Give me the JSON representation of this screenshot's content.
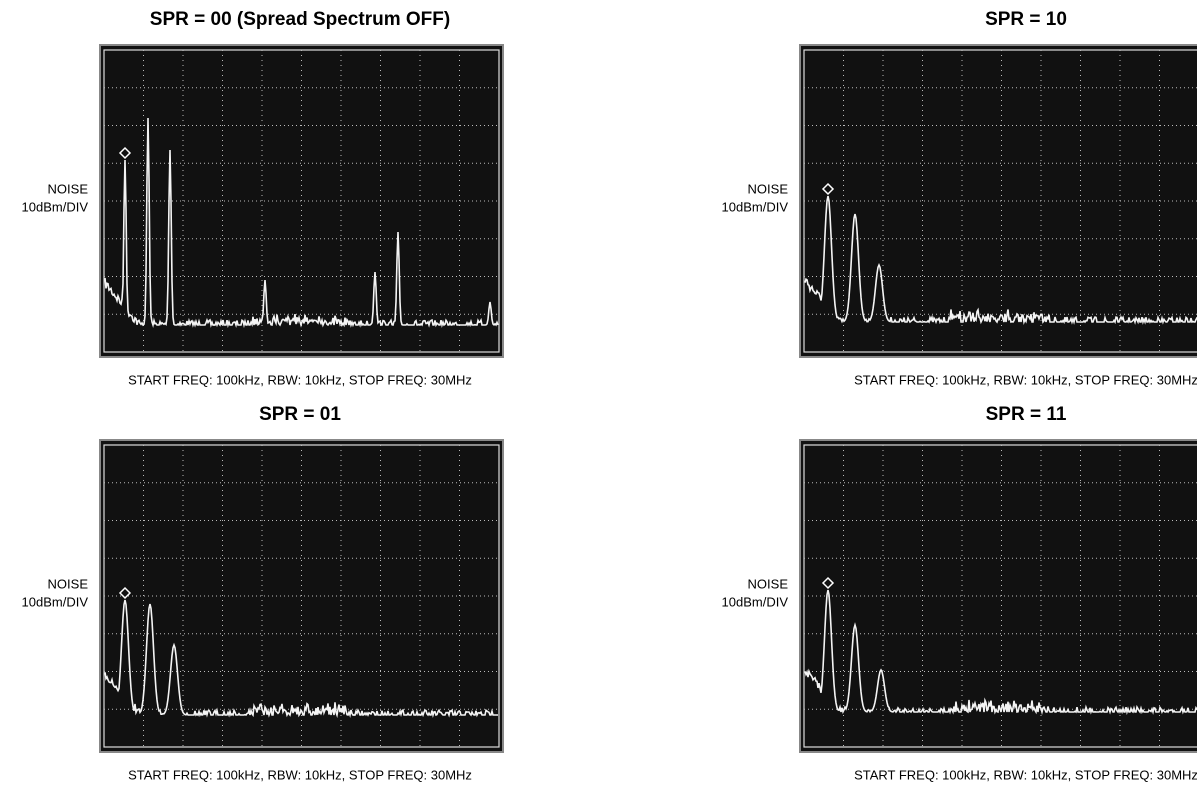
{
  "panels": [
    {
      "title": "SPR = 00 (Spread Spectrum OFF)",
      "y_label": [
        "NOISE",
        "10dBm/DIV"
      ],
      "caption": "START FREQ: 100kHz, RBW: 10kHz, STOP FREQ: 30MHz"
    },
    {
      "title": "SPR = 10",
      "y_label": [
        "NOISE",
        "10dBm/DIV"
      ],
      "caption": "START FREQ: 100kHz, RBW: 10kHz, STOP FREQ: 30MHz"
    },
    {
      "title": "SPR = 01",
      "y_label": [
        "NOISE",
        "10dBm/DIV"
      ],
      "caption": "START FREQ: 100kHz, RBW: 10kHz, STOP FREQ: 30MHz"
    },
    {
      "title": "SPR = 11",
      "y_label": [
        "NOISE",
        "10dBm/DIV"
      ],
      "caption": "START FREQ: 100kHz, RBW: 10kHz, STOP FREQ: 30MHz"
    }
  ]
}
